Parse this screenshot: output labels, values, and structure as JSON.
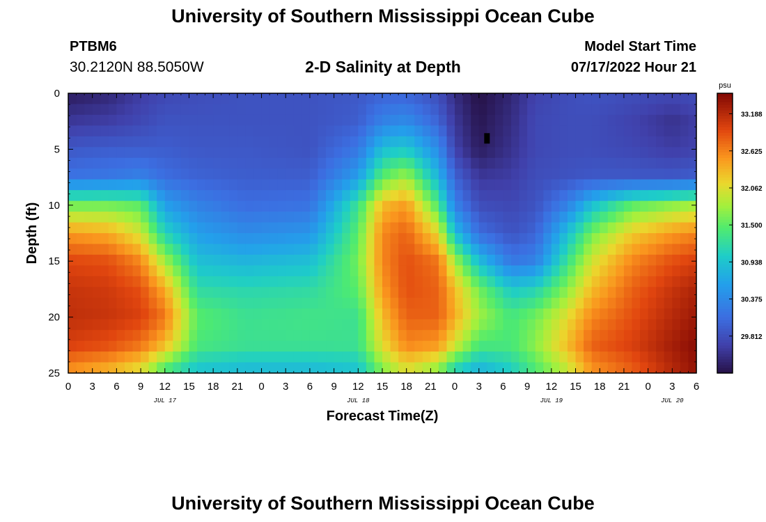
{
  "header": {
    "title": "University of Southern Mississippi Ocean Cube",
    "station": "PTBM6",
    "coords": "30.2120N  88.5050W",
    "subtitle": "2-D Salinity at Depth",
    "model_start_label": "Model Start Time",
    "model_start_value": "07/17/2022 Hour 21"
  },
  "footer": {
    "title": "University of Southern Mississippi Ocean Cube"
  },
  "chart_data": {
    "type": "heatmap",
    "title": "2-D Salinity at Depth",
    "xlabel": "Forecast Time(Z)",
    "ylabel": "Depth (ft)",
    "x_range_hours": [
      0,
      78
    ],
    "x_tick_labels": [
      "0",
      "3",
      "6",
      "9",
      "12",
      "15",
      "18",
      "21",
      "0",
      "3",
      "6",
      "9",
      "12",
      "15",
      "18",
      "21",
      "0",
      "3",
      "6",
      "9",
      "12",
      "15",
      "18",
      "21",
      "0",
      "3",
      "6"
    ],
    "day_labels": [
      {
        "label": "JUL 17",
        "hour": 12
      },
      {
        "label": "JUL 18",
        "hour": 36
      },
      {
        "label": "JUL 19",
        "hour": 60
      },
      {
        "label": "JUL 20",
        "hour": 75
      }
    ],
    "y_range_ft": [
      0,
      25
    ],
    "y_ticks": [
      0,
      5,
      10,
      15,
      20,
      25
    ],
    "colorbar": {
      "unit": "psu",
      "min": 29.25,
      "max": 33.5,
      "ticks": [
        29.812,
        30.375,
        30.938,
        31.5,
        32.062,
        32.625,
        33.188
      ],
      "tick_labels": [
        "29.812",
        "30.375",
        "30.938",
        "31.500",
        "32.062",
        "32.625",
        "33.188"
      ]
    },
    "salinity_profiles": {
      "depths_ft": [
        0,
        2.5,
        5,
        7.5,
        10,
        12.5,
        15,
        17.5,
        20,
        22.5,
        25
      ],
      "times_hr": [
        0,
        5,
        9,
        12,
        16,
        22,
        30,
        36,
        39,
        42,
        46,
        48,
        51,
        55,
        58,
        62,
        65,
        70,
        75,
        78
      ],
      "values": [
        [
          29.35,
          29.6,
          29.9,
          30.15,
          31.6,
          32.5,
          32.95,
          33.1,
          33.15,
          33.0,
          32.5
        ],
        [
          29.45,
          29.65,
          29.95,
          30.2,
          31.6,
          32.4,
          32.9,
          33.05,
          33.1,
          32.9,
          32.3
        ],
        [
          29.65,
          29.75,
          29.95,
          30.3,
          31.5,
          32.0,
          32.6,
          32.9,
          33.0,
          32.7,
          32.0
        ],
        [
          29.75,
          29.85,
          29.95,
          30.1,
          30.6,
          31.1,
          31.8,
          32.4,
          32.7,
          32.3,
          31.3
        ],
        [
          29.8,
          29.85,
          29.9,
          30.0,
          30.3,
          30.6,
          30.9,
          31.2,
          31.5,
          31.4,
          30.9
        ],
        [
          29.85,
          29.85,
          29.9,
          29.95,
          30.1,
          30.4,
          30.8,
          31.15,
          31.3,
          31.3,
          30.8
        ],
        [
          29.85,
          29.85,
          29.85,
          29.95,
          30.15,
          30.5,
          30.9,
          31.2,
          31.35,
          31.3,
          30.8
        ],
        [
          29.9,
          29.95,
          30.2,
          30.6,
          31.3,
          31.5,
          31.6,
          31.5,
          31.3,
          31.3,
          30.9
        ],
        [
          30.0,
          30.3,
          30.9,
          31.5,
          32.3,
          32.6,
          32.6,
          32.5,
          32.3,
          32.1,
          31.6
        ],
        [
          30.0,
          30.4,
          31.0,
          31.8,
          32.5,
          32.8,
          32.9,
          32.9,
          32.8,
          32.6,
          32.0
        ],
        [
          29.8,
          30.0,
          30.4,
          30.8,
          31.4,
          32.1,
          32.7,
          32.8,
          32.8,
          32.5,
          31.6
        ],
        [
          29.5,
          29.6,
          29.7,
          30.0,
          30.3,
          30.9,
          31.8,
          32.3,
          32.4,
          32.0,
          31.0
        ],
        [
          29.25,
          29.3,
          29.35,
          29.6,
          29.8,
          30.1,
          30.9,
          31.6,
          31.8,
          31.4,
          30.7
        ],
        [
          29.45,
          29.5,
          29.55,
          29.65,
          29.75,
          29.85,
          30.2,
          31.0,
          31.4,
          31.4,
          31.0
        ],
        [
          29.7,
          29.75,
          29.75,
          29.8,
          29.85,
          30.0,
          30.3,
          31.1,
          31.6,
          31.7,
          31.4
        ],
        [
          29.8,
          29.8,
          29.8,
          29.85,
          30.3,
          30.9,
          31.3,
          31.7,
          32.1,
          32.3,
          31.9
        ],
        [
          29.85,
          29.8,
          29.8,
          29.9,
          30.9,
          31.6,
          32.0,
          32.3,
          32.6,
          32.8,
          32.5
        ],
        [
          29.8,
          29.7,
          29.75,
          29.9,
          31.5,
          32.2,
          32.6,
          32.8,
          32.9,
          33.0,
          32.8
        ],
        [
          29.75,
          29.55,
          29.65,
          29.9,
          31.7,
          32.5,
          32.9,
          33.1,
          33.2,
          33.3,
          33.2
        ],
        [
          29.8,
          29.65,
          29.7,
          29.95,
          31.8,
          32.6,
          33.0,
          33.25,
          33.35,
          33.45,
          33.4
        ]
      ]
    },
    "marker": {
      "hour": 52,
      "depth_ft": 4
    }
  }
}
